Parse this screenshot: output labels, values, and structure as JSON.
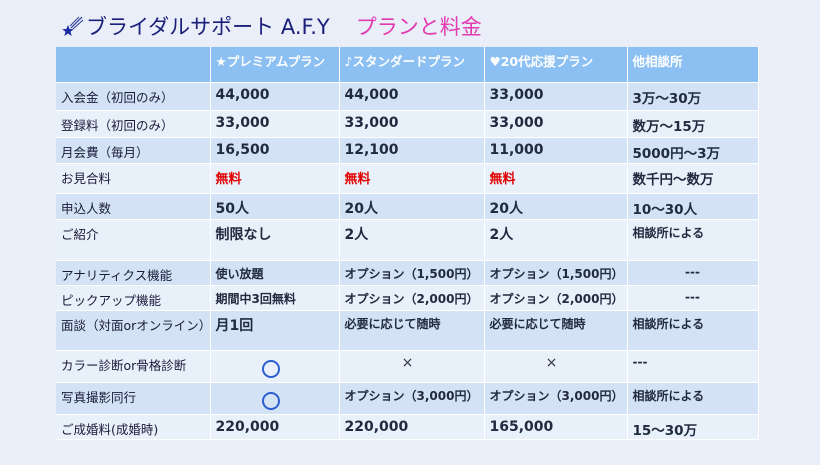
{
  "title": {
    "main": "ブライダルサポート A.F.Y",
    "sub": "プランと料金"
  },
  "icons": {
    "title_icon": "shooting-star-icon",
    "circle": "circle-mark-icon",
    "cross": "cross-mark-icon"
  },
  "colors": {
    "header_bg": "#8cc0f2",
    "row_odd": "#d3e3f5",
    "row_even": "#e8f0fa",
    "title_main": "#1a1f7a",
    "title_sub": "#e23ab0",
    "free_red": "#e00000",
    "circle_blue": "#2b5fd0"
  },
  "table": {
    "headers": [
      "",
      "★プレミアムプラン",
      "♪スタンダードプラン",
      "♥20代応援プラン",
      "他相談所"
    ],
    "rows": [
      {
        "label": "入会金（初回のみ）",
        "premium": "44,000",
        "standard": "44,000",
        "twenties": "33,000",
        "other": "3万～30万"
      },
      {
        "label": "登録料（初回のみ）",
        "premium": "33,000",
        "standard": "33,000",
        "twenties": "33,000",
        "other": "数万～15万"
      },
      {
        "label": "月会費（毎月）",
        "premium": "16,500",
        "standard": "12,100",
        "twenties": "11,000",
        "other": "5000円～3万"
      },
      {
        "label": "お見合料",
        "premium": "無料",
        "standard": "無料",
        "twenties": "無料",
        "other": "数千円～数万"
      },
      {
        "label": "申込人数",
        "premium": "50人",
        "standard": "20人",
        "twenties": "20人",
        "other": "10～30人"
      },
      {
        "label": "ご紹介",
        "premium": "制限なし",
        "standard": "2人",
        "twenties": "2人",
        "other": "相談所による"
      },
      {
        "label": "アナリティクス機能",
        "premium": "使い放題",
        "standard": "オプション（1,500円）",
        "twenties": "オプション（1,500円）",
        "other": "---"
      },
      {
        "label": "ピックアップ機能",
        "premium": "期間中3回無料",
        "standard": "オプション（2,000円）",
        "twenties": "オプション（2,000円）",
        "other": "---"
      },
      {
        "label": "面談（対面orオンライン）",
        "premium": "月1回",
        "standard": "必要に応じて随時",
        "twenties": "必要に応じて随時",
        "other": "相談所による"
      },
      {
        "label": "カラー診断or骨格診断",
        "premium": "〇",
        "standard": "×",
        "twenties": "×",
        "other": "---"
      },
      {
        "label": "写真撮影同行",
        "premium": "〇",
        "standard": "オプション（3,000円）",
        "twenties": "オプション（3,000円）",
        "other": "相談所による"
      },
      {
        "label": "ご成婚料(成婚時)",
        "premium": "220,000",
        "standard": "220,000",
        "twenties": "165,000",
        "other": "15～30万"
      }
    ]
  }
}
